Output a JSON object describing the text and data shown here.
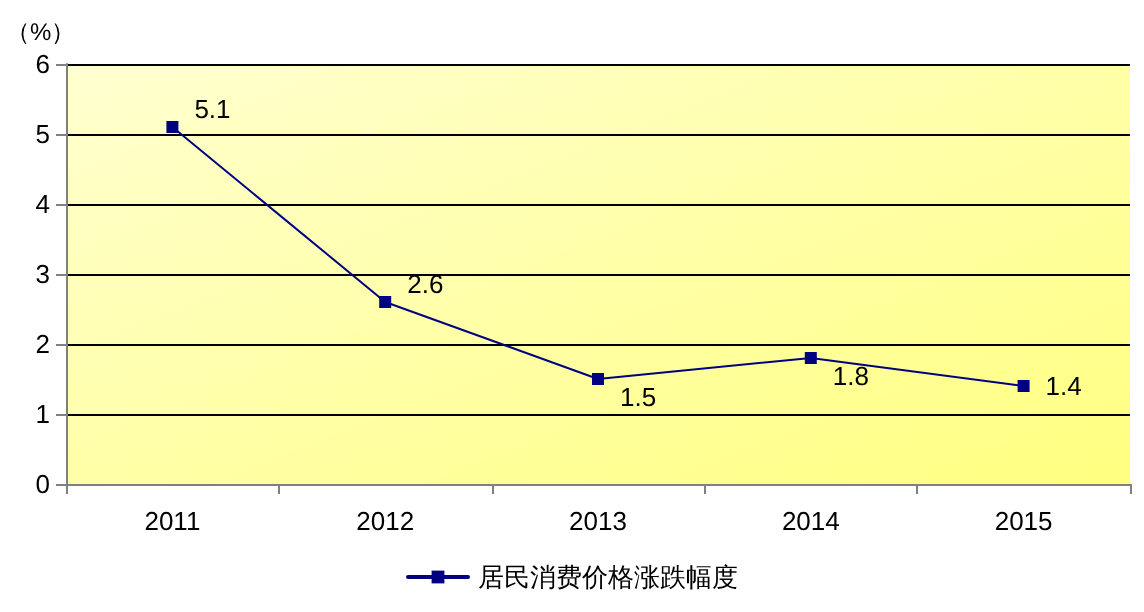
{
  "chart_data": {
    "type": "line",
    "ylabel": "（%）",
    "categories": [
      "2011",
      "2012",
      "2013",
      "2014",
      "2015"
    ],
    "series": [
      {
        "name": "居民消费价格涨跌幅度",
        "color": "#000080",
        "values": [
          5.1,
          2.6,
          1.5,
          1.8,
          1.4
        ]
      }
    ],
    "ylim": [
      0,
      6
    ],
    "yticks": [
      0,
      1,
      2,
      3,
      4,
      5,
      6
    ],
    "grid": "y",
    "legend": "bottom",
    "marker": "square",
    "line_style": "solid",
    "data_labels": true
  }
}
